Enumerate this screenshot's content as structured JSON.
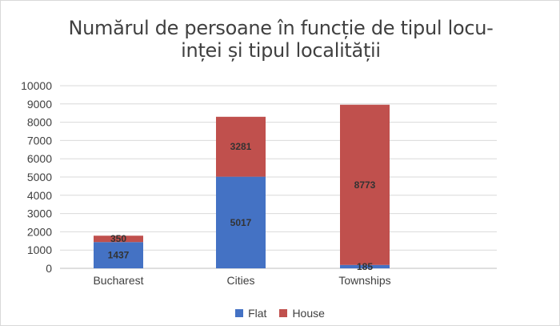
{
  "chart_data": {
    "type": "bar",
    "stacked": true,
    "title_lines": [
      "Numărul de persoane în funcție de tipul locu-",
      "inței și tipul localității"
    ],
    "categories": [
      "Bucharest",
      "Cities",
      "Townships"
    ],
    "series": [
      {
        "name": "Flat",
        "color": "#4472C4",
        "values": [
          1437,
          5017,
          185
        ]
      },
      {
        "name": "House",
        "color": "#C0504D",
        "values": [
          350,
          3281,
          8773
        ]
      }
    ],
    "ylim": [
      0,
      10000
    ],
    "yticks": [
      "0",
      "1000",
      "2000",
      "3000",
      "4000",
      "5000",
      "6000",
      "7000",
      "8000",
      "9000",
      "10000"
    ],
    "grid": true,
    "legend_position": "bottom"
  }
}
